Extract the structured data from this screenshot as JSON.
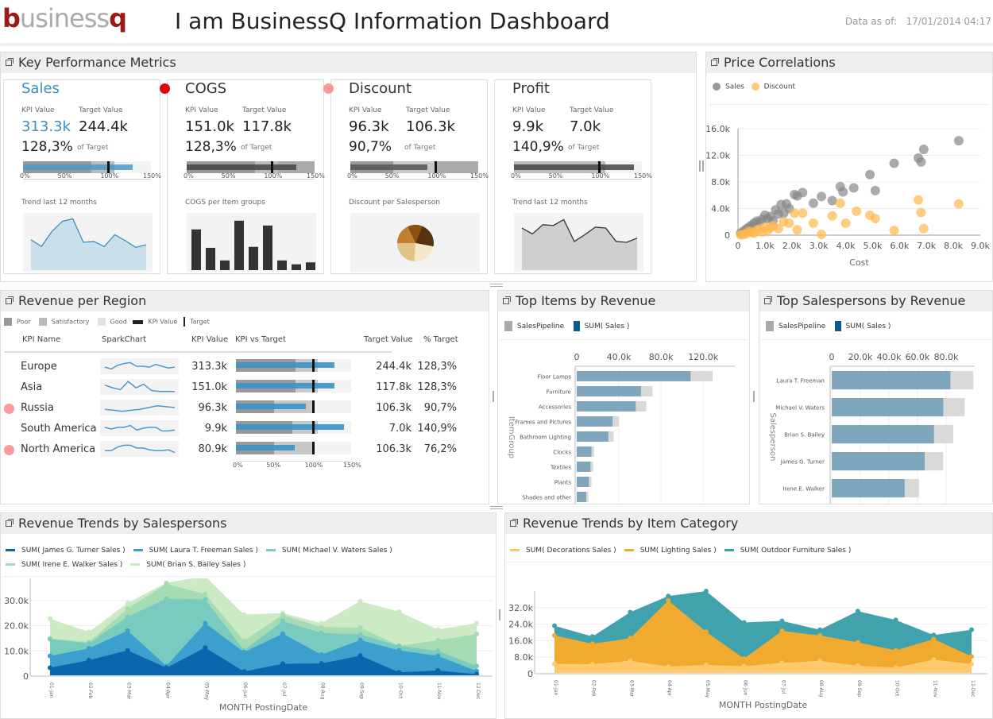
{
  "header": {
    "logo_b": "b",
    "logo_mid": "usiness",
    "logo_q": "q",
    "title": "I am BusinessQ Information Dashboard",
    "asof_label": "Data as of:",
    "asof_value": "17/01/2014 04:17"
  },
  "kpi_panel": {
    "title": "Key Performance Metrics",
    "cards": [
      {
        "name": "Sales",
        "status": "none",
        "kpi_label": "KPI Value",
        "target_label": "Target Value",
        "kpi": "313.3k",
        "target": "244.4k",
        "pct": "128,3%",
        "of": "of Target",
        "pct_value": 128.3,
        "sub": "Trend last 12 months",
        "bar_color": "#4a9acb",
        "chart": "area",
        "spark": [
          38,
          30,
          48,
          60,
          63,
          35,
          36,
          30,
          44,
          37,
          29,
          32
        ]
      },
      {
        "name": "COGS",
        "status": "#e00",
        "kpi_label": "KPI Value",
        "target_label": "Target Value",
        "kpi": "151.0k",
        "target": "117.8k",
        "pct": "128,3%",
        "of": "of Target",
        "pct_value": 128.3,
        "sub": "COGS per Item groups",
        "bar_color": "#444",
        "chart": "bars",
        "spark": [
          42,
          23,
          10,
          51,
          24,
          46,
          10,
          6,
          8
        ]
      },
      {
        "name": "Discount",
        "status": "#f99",
        "kpi_label": "KPI Value",
        "target_label": "Target Value",
        "kpi": "96.3k",
        "target": "106.3k",
        "pct": "90,7%",
        "of": "of Target",
        "pct_value": 90.7,
        "sub": "Discount per Salesperson",
        "bar_color": "#555",
        "chart": "pie",
        "spark": [
          18,
          13,
          22,
          23,
          24
        ]
      },
      {
        "name": "Profit",
        "status": "none",
        "kpi_label": "KPI Value",
        "target_label": "Target Value",
        "kpi": "9.9k",
        "target": "7.0k",
        "pct": "140,9%",
        "of": "of Target",
        "pct_value": 140.9,
        "sub": "Trend last 12 months",
        "bar_color": "#444",
        "chart": "gray-area",
        "spark": [
          52,
          45,
          56,
          55,
          62,
          36,
          44,
          53,
          52,
          36,
          35,
          40
        ]
      }
    ],
    "ticks": [
      "0%",
      "50%",
      "100%",
      "150%"
    ]
  },
  "price_corr": {
    "title": "Price Correlations",
    "legend": [
      {
        "label": "Sales",
        "color": "#999"
      },
      {
        "label": "Discount",
        "color": "#ffc978"
      }
    ]
  },
  "revenue_region": {
    "title": "Revenue per Region",
    "legend": [
      "Poor",
      "Satisfactory",
      "Good",
      "KPI Value",
      "Target"
    ],
    "columns": [
      "KPI Name",
      "SparkChart",
      "KPI Value",
      "KPI vs Target",
      "Target Value",
      "% Target"
    ],
    "rows": [
      {
        "name": "Europe",
        "alert": false,
        "kpi": "313.3k",
        "target": "244.4k",
        "pct": "128,3%",
        "pct_value": 128.3,
        "spark": [
          6,
          4,
          8,
          10,
          11,
          7,
          7,
          6,
          9,
          7,
          5,
          6
        ]
      },
      {
        "name": "Asia",
        "alert": false,
        "kpi": "151.0k",
        "target": "117.8k",
        "pct": "128,3%",
        "pct_value": 128.3,
        "spark": [
          9,
          6,
          4,
          13,
          6,
          10,
          3,
          2,
          2,
          2
        ]
      },
      {
        "name": "Russia",
        "alert": true,
        "kpi": "96.3k",
        "target": "106.3k",
        "pct": "90,7%",
        "pct_value": 90.7,
        "spark": [
          5,
          4,
          3,
          4,
          5,
          7,
          9,
          8,
          7
        ]
      },
      {
        "name": "South America",
        "alert": false,
        "kpi": "9.9k",
        "target": "7.0k",
        "pct": "140,9%",
        "pct_value": 140.9,
        "spark": [
          8,
          6,
          8,
          8,
          10,
          5,
          7,
          8,
          8,
          4,
          4,
          5
        ]
      },
      {
        "name": "North America",
        "alert": true,
        "kpi": "80.9k",
        "target": "106.3k",
        "pct": "76,2%",
        "pct_value": 76.2,
        "spark": [
          5,
          5,
          9,
          11,
          11,
          8,
          8,
          6,
          5,
          5,
          6,
          3
        ]
      }
    ],
    "ticks": [
      "0%",
      "50%",
      "100%",
      "150%"
    ]
  },
  "chart_data": [
    {
      "id": "scatter",
      "type": "scatter",
      "title": "Price Correlations",
      "xlabel": "Cost",
      "ylabel": "",
      "xlim": [
        0,
        9000
      ],
      "ylim": [
        0,
        16000
      ],
      "xticks": [
        "0",
        "1.0k",
        "2.0k",
        "3.0k",
        "4.0k",
        "5.0k",
        "6.0k",
        "7.0k",
        "8.0k",
        "9.0k"
      ],
      "yticks": [
        "0",
        "4.0k",
        "8.0k",
        "12.0k",
        "16.0k"
      ],
      "series": [
        {
          "name": "Sales",
          "color": "#888",
          "points": [
            [
              8200,
              14200
            ],
            [
              6900,
              12900
            ],
            [
              6700,
              11600
            ],
            [
              6800,
              11000
            ],
            [
              5800,
              10800
            ],
            [
              4900,
              9100
            ],
            [
              5100,
              6700
            ],
            [
              4300,
              7100
            ],
            [
              3800,
              7300
            ],
            [
              3900,
              6500
            ],
            [
              3500,
              5200
            ],
            [
              3100,
              5800
            ],
            [
              2400,
              6400
            ],
            [
              2100,
              6100
            ],
            [
              2200,
              5900
            ],
            [
              2800,
              4800
            ],
            [
              1800,
              4700
            ],
            [
              1600,
              4600
            ],
            [
              1900,
              4000
            ],
            [
              1400,
              3800
            ],
            [
              1700,
              3300
            ],
            [
              1200,
              2800
            ],
            [
              1000,
              3000
            ],
            [
              900,
              2400
            ],
            [
              700,
              2100
            ],
            [
              500,
              1500
            ],
            [
              400,
              1200
            ],
            [
              300,
              900
            ],
            [
              200,
              600
            ],
            [
              100,
              300
            ],
            [
              1100,
              2500
            ],
            [
              1500,
              3200
            ],
            [
              600,
              1800
            ],
            [
              800,
              2000
            ],
            [
              1300,
              2200
            ]
          ]
        },
        {
          "name": "Discount",
          "color": "#ffb84d",
          "points": [
            [
              8200,
              4700
            ],
            [
              6700,
              5300
            ],
            [
              6800,
              3400
            ],
            [
              6900,
              1000
            ],
            [
              5800,
              700
            ],
            [
              5100,
              2500
            ],
            [
              4900,
              3000
            ],
            [
              4400,
              3600
            ],
            [
              4000,
              1800
            ],
            [
              3800,
              4800
            ],
            [
              3500,
              2900
            ],
            [
              3100,
              100
            ],
            [
              2800,
              1800
            ],
            [
              2400,
              3300
            ],
            [
              2100,
              3300
            ],
            [
              2200,
              800
            ],
            [
              1900,
              1800
            ],
            [
              1700,
              2000
            ],
            [
              1500,
              1000
            ],
            [
              1300,
              1400
            ],
            [
              1100,
              700
            ],
            [
              900,
              500
            ],
            [
              700,
              800
            ],
            [
              500,
              400
            ],
            [
              300,
              200
            ],
            [
              200,
              100
            ],
            [
              100,
              50
            ],
            [
              1000,
              1200
            ],
            [
              600,
              300
            ],
            [
              400,
              600
            ],
            [
              800,
              900
            ],
            [
              1200,
              1100
            ]
          ]
        }
      ]
    },
    {
      "id": "top_items",
      "type": "bar",
      "title": "Top Items by Revenue",
      "ylabel": "ItemGroup",
      "xlim": [
        0,
        150000
      ],
      "xticks": [
        "0",
        "40.0k",
        "80.0k",
        "120.0k"
      ],
      "categories": [
        "Floor Lamps",
        "Furniture",
        "Accessories",
        "Frames and Pictures",
        "Bathroom Lighting",
        "Clocks",
        "Textiles",
        "Plants",
        "Shades and other"
      ],
      "series": [
        {
          "name": "SalesPipeline",
          "color": "#d9d9d9",
          "values": [
            129000,
            72000,
            66000,
            40000,
            35000,
            16500,
            15500,
            14000,
            11000
          ]
        },
        {
          "name": "SUM( Sales )",
          "color": "#7fa6bd",
          "values": [
            108000,
            61000,
            56000,
            34000,
            30000,
            14000,
            13000,
            11500,
            9000
          ]
        }
      ],
      "legend": [
        {
          "label": "SalesPipeline",
          "color": "#aaa"
        },
        {
          "label": "SUM( Sales )",
          "color": "#0e5a8a"
        }
      ]
    },
    {
      "id": "top_sales",
      "type": "bar",
      "title": "Top Salespersons by Revenue",
      "ylabel": "Salesperson",
      "xlim": [
        0,
        100000
      ],
      "xticks": [
        "0",
        "20.0k",
        "40.0k",
        "60.0k",
        "80.0k"
      ],
      "categories": [
        "Laura T. Freeman",
        "Michael V. Waters",
        "Brian S. Bailey",
        "James G. Turner",
        "Irene E. Walker"
      ],
      "series": [
        {
          "name": "SalesPipeline",
          "color": "#d9d9d9",
          "values": [
            99000,
            93000,
            85000,
            78000,
            61000
          ]
        },
        {
          "name": "SUM( Sales )",
          "color": "#7fa6bd",
          "values": [
            83000,
            78000,
            71500,
            65000,
            51000
          ]
        }
      ],
      "legend": [
        {
          "label": "SalesPipeline",
          "color": "#aaa"
        },
        {
          "label": "SUM( Sales )",
          "color": "#0e5a8a"
        }
      ]
    },
    {
      "id": "trend_sp",
      "type": "area",
      "title": "Revenue Trends by Salespersons",
      "xlabel": "MONTH PostingDate",
      "ylim": [
        0,
        40000
      ],
      "yticks": [
        "0",
        "10.0k",
        "20.0k",
        "30.0k"
      ],
      "x": [
        "01-Jan",
        "02-Feb",
        "03-Mar",
        "04-Apr",
        "05-May",
        "06-Jun",
        "07-Jul",
        "08-Aug",
        "09-Sep",
        "10-Oct",
        "11-Nov",
        "12-Dec"
      ],
      "series": [
        {
          "name": "SUM( James G. Turner Sales )",
          "color": "#0b66ad",
          "values": [
            3300,
            6300,
            10200,
            3300,
            11300,
            1800,
            4900,
            5000,
            8100,
            1500,
            2200,
            800
          ]
        },
        {
          "name": "SUM( Laura T. Freeman Sales )",
          "color": "#3d9fcd",
          "values": [
            8000,
            11000,
            18000,
            4000,
            21000,
            9500,
            16800,
            8500,
            14300,
            10200,
            8000,
            2000
          ]
        },
        {
          "name": "SUM( Michael V. Waters Sales )",
          "color": "#79cbbf",
          "values": [
            14600,
            13000,
            23500,
            30700,
            30400,
            10200,
            21800,
            17100,
            16500,
            12000,
            10000,
            4000
          ]
        },
        {
          "name": "SUM( Irene E. Walker Sales )",
          "color": "#a6dcb3",
          "values": [
            15000,
            13500,
            26800,
            36600,
            32500,
            14000,
            24300,
            19400,
            19200,
            12000,
            14200,
            16700
          ]
        },
        {
          "name": "SUM( Brian S. Bailey Sales )",
          "color": "#ccebc5",
          "values": [
            22800,
            17500,
            29000,
            37000,
            39600,
            24400,
            25000,
            21000,
            29700,
            25500,
            18500,
            21000
          ]
        }
      ]
    },
    {
      "id": "trend_cat",
      "type": "area",
      "title": "Revenue Trends by Item Category",
      "xlabel": "MONTH PostingDate",
      "ylim": [
        0,
        40000
      ],
      "yticks": [
        "0",
        "8.0k",
        "16.0k",
        "24.0k",
        "32.0k"
      ],
      "x": [
        "01-Jan",
        "02-Feb",
        "03-Mar",
        "04-Apr",
        "05-May",
        "06-Jun",
        "07-Jul",
        "08-Aug",
        "09-Sep",
        "10-Oct",
        "11-Nov",
        "12-Dec"
      ],
      "series": [
        {
          "name": "SUM( Decorations Sales )",
          "color": "#ffc96b",
          "values": [
            4800,
            4600,
            6300,
            3400,
            4300,
            3600,
            5300,
            6200,
            3900,
            3000,
            6800,
            4700
          ]
        },
        {
          "name": "SUM( Lighting Sales )",
          "color": "#f0aa30",
          "values": [
            18500,
            14500,
            17200,
            35400,
            20300,
            7300,
            20700,
            18500,
            15200,
            11300,
            16800,
            8400
          ]
        },
        {
          "name": "SUM( Outdoor Furniture Sales )",
          "color": "#3fa2ad",
          "values": [
            23200,
            18000,
            29800,
            37600,
            40000,
            24800,
            25600,
            21300,
            30300,
            26000,
            18700,
            21300
          ]
        }
      ]
    }
  ]
}
